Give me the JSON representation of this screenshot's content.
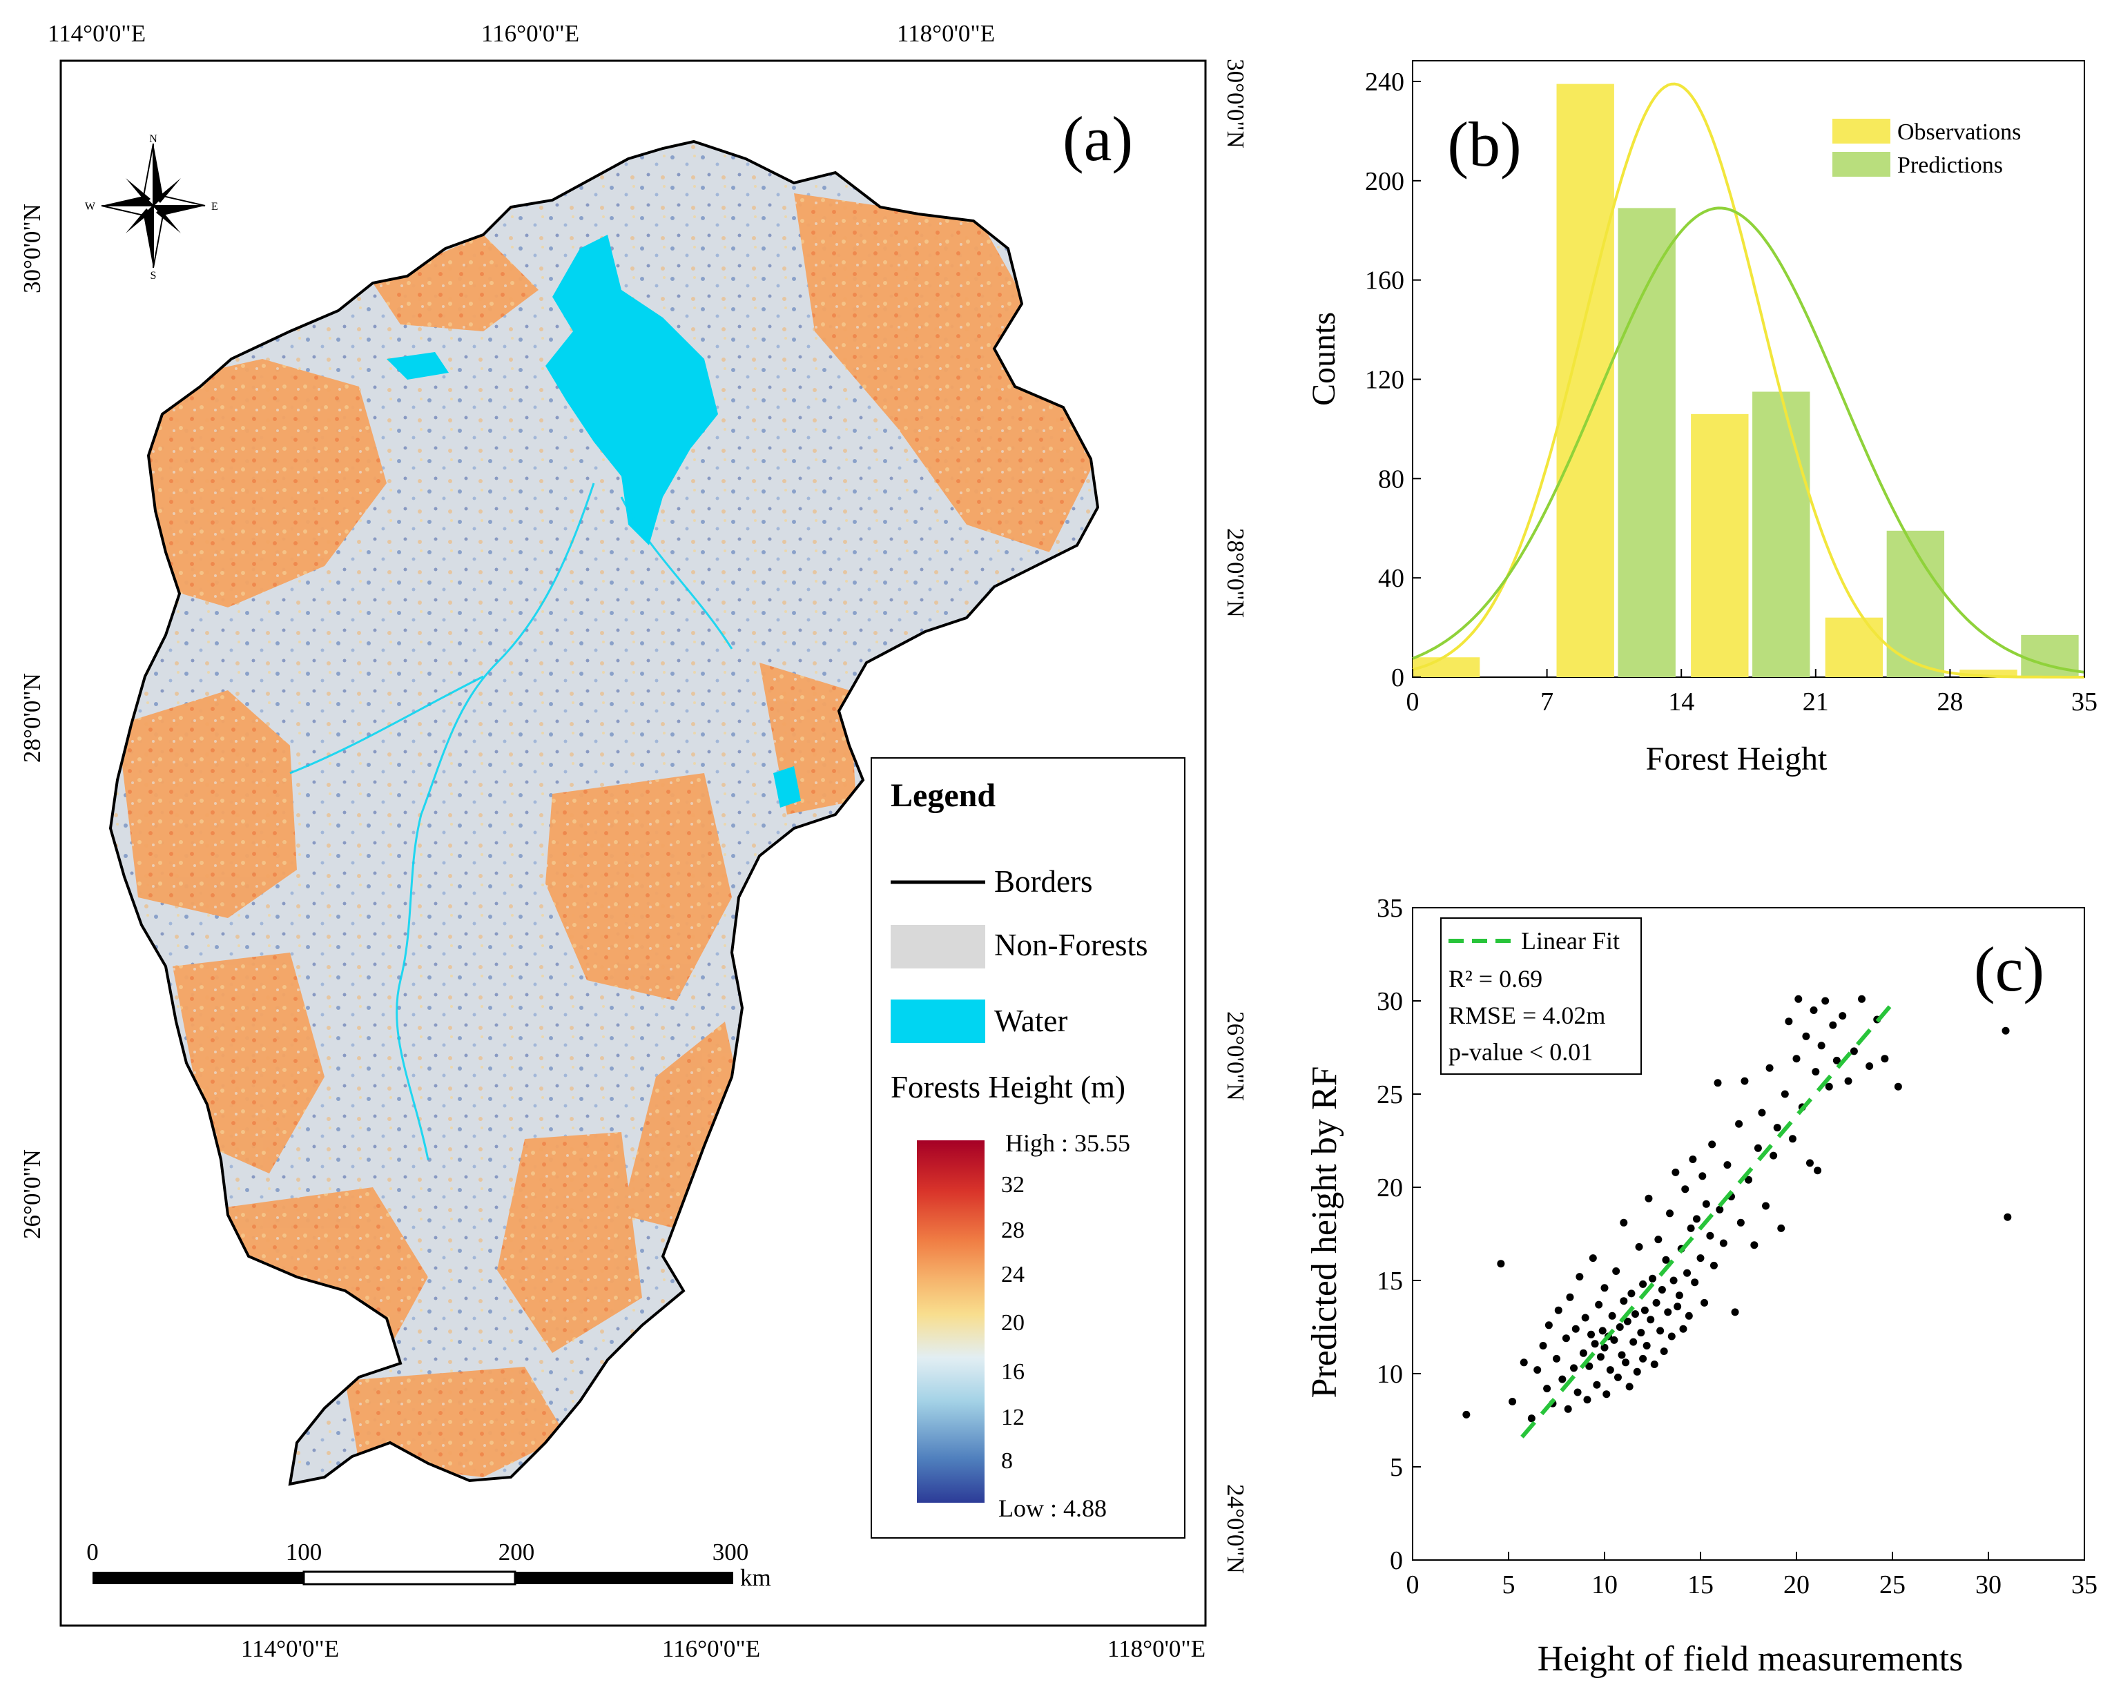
{
  "panel_a": {
    "label": "(a)",
    "coords": {
      "top_lon": [
        "114°0'0\"E",
        "116°0'0\"E",
        "118°0'0\"E"
      ],
      "bottom_lon": [
        "114°0'0\"E",
        "116°0'0\"E",
        "118°0'0\"E"
      ],
      "left_lat": [
        "30°0'0\"N",
        "28°0'0\"N",
        "26°0'0\"N"
      ],
      "right_lat": [
        "30°0'0\"N",
        "28°0'0\"N",
        "26°0'0\"N",
        "24°0'0\"N"
      ]
    },
    "compass": {
      "n": "N",
      "s": "S",
      "e": "E",
      "w": "W"
    },
    "legend": {
      "title": "Legend",
      "borders": "Borders",
      "non_forests": "Non-Forests",
      "water": "Water",
      "height_title": "Forests Height (m)",
      "high": "High : 35.55",
      "low": "Low : 4.88",
      "ticks": [
        "32",
        "28",
        "24",
        "20",
        "16",
        "12",
        "8"
      ]
    },
    "scalebar": {
      "ticks": [
        "0",
        "100",
        "200",
        "300"
      ],
      "unit": "km"
    },
    "colors": {
      "water": "#00d5f2",
      "non_forest": "#d9d9d9",
      "border": "#000000",
      "ramp": [
        "#2c3b97",
        "#4f7fbd",
        "#a4d2e6",
        "#e2eef3",
        "#f8de8e",
        "#f6b26b",
        "#f07f45",
        "#d9342a",
        "#a50026"
      ]
    }
  },
  "chart_data": [
    {
      "panel": "(b)",
      "type": "bar",
      "xlabel": "Forest Height",
      "ylabel": "Counts",
      "xlim": [
        0,
        35
      ],
      "ylim": [
        0,
        240
      ],
      "xticks": [
        "0",
        "7",
        "14",
        "21",
        "28",
        "35"
      ],
      "yticks": [
        "0",
        "40",
        "80",
        "120",
        "160",
        "200",
        "240"
      ],
      "series": [
        {
          "name": "Observations",
          "color": "#f7ea5c",
          "bins": [
            [
              0,
              3.5
            ],
            [
              7.5,
              10.5
            ],
            [
              14.5,
              17.5
            ],
            [
              21.5,
              24.5
            ],
            [
              28.5,
              31.5
            ]
          ],
          "values": [
            8,
            239,
            106,
            24,
            3
          ],
          "fit": {
            "mean": 13.6,
            "sd": 4.6,
            "peak": 239,
            "color": "#f2e63c"
          }
        },
        {
          "name": "Predictions",
          "color": "#b9de7d",
          "bins": [
            [
              10.7,
              13.7
            ],
            [
              17.7,
              20.7
            ],
            [
              24.7,
              27.7
            ],
            [
              31.7,
              34.7
            ]
          ],
          "values": [
            189,
            115,
            59,
            17
          ],
          "fit": {
            "mean": 16.0,
            "sd": 6.3,
            "peak": 189,
            "color": "#8fd23a"
          }
        }
      ]
    },
    {
      "panel": "(c)",
      "type": "scatter",
      "xlabel": "Height of field measurements",
      "ylabel": "Predicted height by RF",
      "xlim": [
        0,
        35
      ],
      "ylim": [
        0,
        35
      ],
      "xticks": [
        "0",
        "5",
        "10",
        "15",
        "20",
        "25",
        "30",
        "35"
      ],
      "yticks": [
        "0",
        "5",
        "10",
        "15",
        "20",
        "25",
        "30",
        "35"
      ],
      "fit_line": {
        "label": "Linear Fit",
        "x": [
          5.7,
          25.2
        ],
        "y": [
          6.6,
          30.1
        ],
        "color": "#28c43a"
      },
      "stats": {
        "r2": "R² = 0.69",
        "rmse": "RMSE = 4.02m",
        "p": "p-value < 0.01"
      },
      "points": [
        [
          2.8,
          7.8
        ],
        [
          4.6,
          15.9
        ],
        [
          5.2,
          8.5
        ],
        [
          5.8,
          10.6
        ],
        [
          6.2,
          7.6
        ],
        [
          6.5,
          10.2
        ],
        [
          6.8,
          11.5
        ],
        [
          7.0,
          9.2
        ],
        [
          7.1,
          12.6
        ],
        [
          7.3,
          8.4
        ],
        [
          7.5,
          10.8
        ],
        [
          7.6,
          13.4
        ],
        [
          7.8,
          9.7
        ],
        [
          8.0,
          11.9
        ],
        [
          8.1,
          8.1
        ],
        [
          8.2,
          14.1
        ],
        [
          8.4,
          10.3
        ],
        [
          8.5,
          12.4
        ],
        [
          8.6,
          9.0
        ],
        [
          8.7,
          15.2
        ],
        [
          8.9,
          11.1
        ],
        [
          9.0,
          13.0
        ],
        [
          9.1,
          8.6
        ],
        [
          9.2,
          10.4
        ],
        [
          9.3,
          12.1
        ],
        [
          9.4,
          16.2
        ],
        [
          9.5,
          11.6
        ],
        [
          9.6,
          9.4
        ],
        [
          9.7,
          13.7
        ],
        [
          9.8,
          10.9
        ],
        [
          9.9,
          12.3
        ],
        [
          10.0,
          11.4
        ],
        [
          10.0,
          14.6
        ],
        [
          10.1,
          8.9
        ],
        [
          10.2,
          12.0
        ],
        [
          10.3,
          10.2
        ],
        [
          10.4,
          13.1
        ],
        [
          10.5,
          11.8
        ],
        [
          10.6,
          15.5
        ],
        [
          10.7,
          9.8
        ],
        [
          10.8,
          12.5
        ],
        [
          10.9,
          11.0
        ],
        [
          11.0,
          13.9
        ],
        [
          11.0,
          18.1
        ],
        [
          11.1,
          10.6
        ],
        [
          11.2,
          12.8
        ],
        [
          11.3,
          9.3
        ],
        [
          11.4,
          14.3
        ],
        [
          11.5,
          11.7
        ],
        [
          11.6,
          13.2
        ],
        [
          11.7,
          10.1
        ],
        [
          11.8,
          16.8
        ],
        [
          11.9,
          12.2
        ],
        [
          12.0,
          14.8
        ],
        [
          12.0,
          10.8
        ],
        [
          12.1,
          13.4
        ],
        [
          12.2,
          11.5
        ],
        [
          12.3,
          19.4
        ],
        [
          12.4,
          12.9
        ],
        [
          12.5,
          15.1
        ],
        [
          12.6,
          10.5
        ],
        [
          12.7,
          13.8
        ],
        [
          12.8,
          17.2
        ],
        [
          12.9,
          12.3
        ],
        [
          13.0,
          14.5
        ],
        [
          13.1,
          11.2
        ],
        [
          13.2,
          16.1
        ],
        [
          13.3,
          13.3
        ],
        [
          13.4,
          18.6
        ],
        [
          13.5,
          12.0
        ],
        [
          13.6,
          15.0
        ],
        [
          13.7,
          20.8
        ],
        [
          13.8,
          13.6
        ],
        [
          13.9,
          14.2
        ],
        [
          14.0,
          16.7
        ],
        [
          14.1,
          12.4
        ],
        [
          14.2,
          19.9
        ],
        [
          14.3,
          15.4
        ],
        [
          14.4,
          13.1
        ],
        [
          14.5,
          17.8
        ],
        [
          14.6,
          21.5
        ],
        [
          14.7,
          14.9
        ],
        [
          14.8,
          18.3
        ],
        [
          15.0,
          16.2
        ],
        [
          15.1,
          20.6
        ],
        [
          15.2,
          13.8
        ],
        [
          15.3,
          19.1
        ],
        [
          15.5,
          17.4
        ],
        [
          15.6,
          22.3
        ],
        [
          15.7,
          15.8
        ],
        [
          15.9,
          25.6
        ],
        [
          16.0,
          18.8
        ],
        [
          16.2,
          17.0
        ],
        [
          16.4,
          21.2
        ],
        [
          16.6,
          19.5
        ],
        [
          16.8,
          13.3
        ],
        [
          17.0,
          23.4
        ],
        [
          17.1,
          18.1
        ],
        [
          17.3,
          25.7
        ],
        [
          17.5,
          20.4
        ],
        [
          17.8,
          16.9
        ],
        [
          18.0,
          22.1
        ],
        [
          18.2,
          24.0
        ],
        [
          18.4,
          19.0
        ],
        [
          18.6,
          26.4
        ],
        [
          18.8,
          21.7
        ],
        [
          19.0,
          23.2
        ],
        [
          19.2,
          17.8
        ],
        [
          19.4,
          25.0
        ],
        [
          19.6,
          28.9
        ],
        [
          19.8,
          22.6
        ],
        [
          20.0,
          26.9
        ],
        [
          20.1,
          30.1
        ],
        [
          20.3,
          24.3
        ],
        [
          20.5,
          28.1
        ],
        [
          20.7,
          21.3
        ],
        [
          20.9,
          29.5
        ],
        [
          21.0,
          26.2
        ],
        [
          21.1,
          20.9
        ],
        [
          21.3,
          27.6
        ],
        [
          21.5,
          30.0
        ],
        [
          21.7,
          25.4
        ],
        [
          21.9,
          28.7
        ],
        [
          22.1,
          26.8
        ],
        [
          22.4,
          29.2
        ],
        [
          22.7,
          25.7
        ],
        [
          23.0,
          27.3
        ],
        [
          23.4,
          30.1
        ],
        [
          23.8,
          26.5
        ],
        [
          24.2,
          29.0
        ],
        [
          24.6,
          26.9
        ],
        [
          25.3,
          25.4
        ],
        [
          30.9,
          28.4
        ],
        [
          31.0,
          18.4
        ]
      ]
    }
  ]
}
